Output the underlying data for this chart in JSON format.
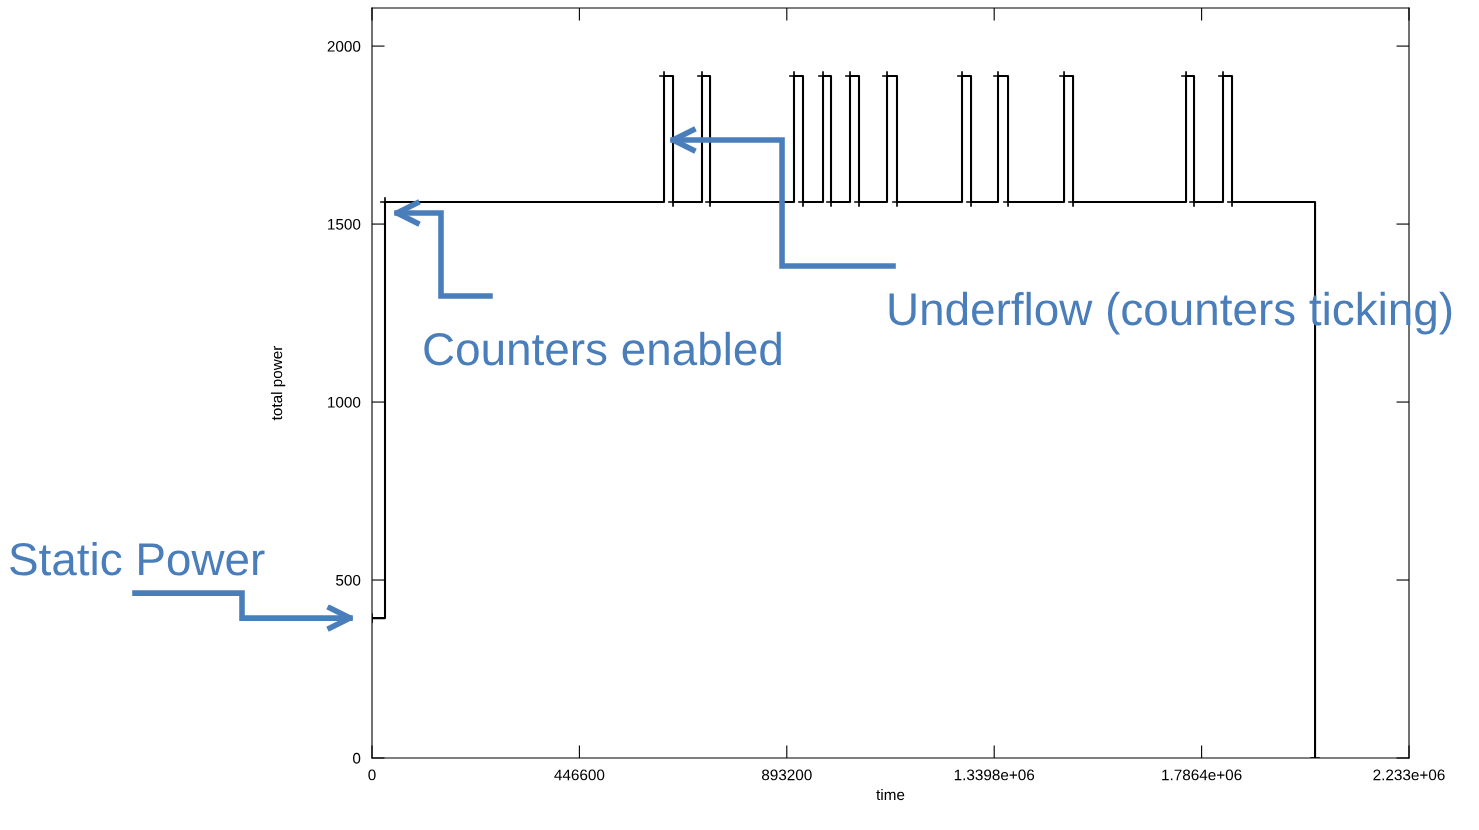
{
  "chart_data": {
    "type": "step",
    "xlabel": "time",
    "ylabel": "total power",
    "series": [
      {
        "color": "#000000",
        "x": [
          0,
          28000,
          628800,
          648200,
          710600,
          727900,
          908700,
          928100,
          971200,
          988400,
          1029300,
          1048700,
          1109000,
          1130500,
          1270500,
          1289900,
          1348000,
          1369600,
          1490200,
          1509600,
          1752900,
          1770100,
          1832500,
          1851900,
          2030700
        ],
        "values": [
          393,
          1562,
          1916,
          1562,
          1916,
          1562,
          1916,
          1562,
          1916,
          1562,
          1916,
          1562,
          1916,
          1562,
          1916,
          1562,
          1916,
          1562,
          1916,
          1562,
          1916,
          1562,
          1916,
          1562,
          0
        ]
      }
    ],
    "xlim": [
      0,
      2233000
    ],
    "xticks": [
      0,
      446600,
      893200,
      {
        "value": 1339800,
        "label": "1.3398e+06"
      },
      {
        "value": 1786400,
        "label": "1.7864e+06"
      },
      {
        "value": 2233000,
        "label": "2.233e+06"
      }
    ],
    "ylim": [
      0,
      2107
    ],
    "yticks": [
      0,
      500,
      1000,
      1500,
      2000
    ],
    "grid": false,
    "legend": false,
    "marker": "cross",
    "line_style": "solid",
    "annotations": [
      {
        "text": "Static Power",
        "x": 0,
        "y": 393
      },
      {
        "text": "Counters enabled",
        "x": 28000,
        "y": 1562
      },
      {
        "text": "Underflow (counters ticking)",
        "x": 648200,
        "y": 1736
      }
    ]
  }
}
